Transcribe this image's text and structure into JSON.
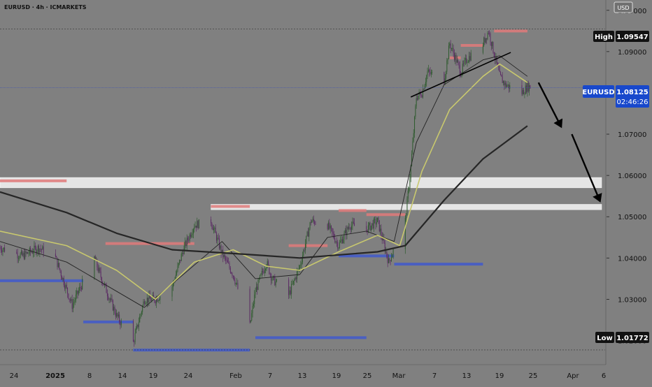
{
  "header": {
    "symbol_label": "EURUSD · 4h · ICMARKETS",
    "currency": "USD"
  },
  "price_scale": {
    "ticks": [
      "1.10000",
      "1.09000",
      "1.07000",
      "1.06000",
      "1.05000",
      "1.04000",
      "1.03000",
      "1.02000"
    ],
    "high_label": "High",
    "high_value": "1.09547",
    "low_label": "Low",
    "low_value": "1.01772",
    "last_symbol": "EURUSD",
    "last_value": "1.08125",
    "countdown": "02:46:26"
  },
  "time_axis": {
    "labels": [
      "24",
      "2025",
      "8",
      "14",
      "19",
      "24",
      "Feb",
      "7",
      "13",
      "19",
      "25",
      "Mar",
      "7",
      "13",
      "19",
      "25",
      "Apr",
      "6"
    ]
  },
  "colors": {
    "bg": "#808080",
    "bull": "#2f5b2f",
    "bear": "#5a2a63",
    "ema_fast": "#222222",
    "ema_mid": "#c8c86e",
    "ema_slow": "#262626",
    "supply": "#e07a7a",
    "demand": "#4a5fc1",
    "zone": "#eeeeee",
    "accent": "#1848cc"
  },
  "chart_data": {
    "type": "candlestick",
    "title": "EURUSD · 4h · ICMARKETS",
    "x_range": [
      "2024-12-20",
      "2025-04-08"
    ],
    "y_range": [
      1.0145,
      1.1025
    ],
    "high": 1.09547,
    "low": 1.01772,
    "last": 1.08125,
    "close_path": [
      [
        "2024-12-20",
        1.0425
      ],
      [
        "2024-12-24",
        1.0405
      ],
      [
        "2024-12-27",
        1.0425
      ],
      [
        "2024-12-30",
        1.04
      ],
      [
        "2025-01-02",
        1.0285
      ],
      [
        "2025-01-03",
        1.0315
      ],
      [
        "2025-01-06",
        1.04
      ],
      [
        "2025-01-07",
        1.036
      ],
      [
        "2025-01-10",
        1.026
      ],
      [
        "2025-01-13",
        1.0195
      ],
      [
        "2025-01-15",
        1.03
      ],
      [
        "2025-01-17",
        1.03
      ],
      [
        "2025-01-20",
        1.033
      ],
      [
        "2025-01-22",
        1.042
      ],
      [
        "2025-01-24",
        1.048
      ],
      [
        "2025-01-27",
        1.049
      ],
      [
        "2025-01-29",
        1.041
      ],
      [
        "2025-01-31",
        1.036
      ],
      [
        "2025-02-03",
        1.0235
      ],
      [
        "2025-02-04",
        1.032
      ],
      [
        "2025-02-06",
        1.039
      ],
      [
        "2025-02-07",
        1.035
      ],
      [
        "2025-02-10",
        1.031
      ],
      [
        "2025-02-12",
        1.038
      ],
      [
        "2025-02-14",
        1.049
      ],
      [
        "2025-02-17",
        1.048
      ],
      [
        "2025-02-19",
        1.043
      ],
      [
        "2025-02-21",
        1.048
      ],
      [
        "2025-02-24",
        1.047
      ],
      [
        "2025-02-26",
        1.049
      ],
      [
        "2025-02-28",
        1.039
      ],
      [
        "2025-03-03",
        1.049
      ],
      [
        "2025-03-04",
        1.062
      ],
      [
        "2025-03-05",
        1.079
      ],
      [
        "2025-03-06",
        1.08
      ],
      [
        "2025-03-07",
        1.085
      ],
      [
        "2025-03-10",
        1.083
      ],
      [
        "2025-03-11",
        1.092
      ],
      [
        "2025-03-13",
        1.085
      ],
      [
        "2025-03-14",
        1.088
      ],
      [
        "2025-03-17",
        1.092
      ],
      [
        "2025-03-18",
        1.095
      ],
      [
        "2025-03-20",
        1.084
      ],
      [
        "2025-03-21",
        1.082
      ],
      [
        "2025-03-24",
        1.08
      ],
      [
        "2025-03-25",
        1.0815
      ]
    ],
    "moving_averages": [
      {
        "path": [
          [
            "2024-12-20",
            1.044
          ],
          [
            "2025-01-01",
            1.039
          ],
          [
            "2025-01-15",
            1.028
          ],
          [
            "2025-01-22",
            1.036
          ],
          [
            "2025-01-29",
            1.044
          ],
          [
            "2025-02-04",
            1.035
          ],
          [
            "2025-02-12",
            1.036
          ],
          [
            "2025-02-17",
            1.045
          ],
          [
            "2025-02-24",
            1.0465
          ],
          [
            "2025-03-01",
            1.044
          ],
          [
            "2025-03-05",
            1.068
          ],
          [
            "2025-03-10",
            1.082
          ],
          [
            "2025-03-17",
            1.088
          ],
          [
            "2025-03-20",
            1.089
          ],
          [
            "2025-03-25",
            1.084
          ]
        ]
      },
      {
        "path": [
          [
            "2024-12-20",
            1.0465
          ],
          [
            "2025-01-01",
            1.043
          ],
          [
            "2025-01-10",
            1.037
          ],
          [
            "2025-01-17",
            1.03
          ],
          [
            "2025-01-24",
            1.039
          ],
          [
            "2025-01-31",
            1.042
          ],
          [
            "2025-02-06",
            1.038
          ],
          [
            "2025-02-12",
            1.037
          ],
          [
            "2025-02-19",
            1.0415
          ],
          [
            "2025-02-26",
            1.0455
          ],
          [
            "2025-03-02",
            1.043
          ],
          [
            "2025-03-06",
            1.061
          ],
          [
            "2025-03-11",
            1.076
          ],
          [
            "2025-03-17",
            1.084
          ],
          [
            "2025-03-20",
            1.087
          ],
          [
            "2025-03-25",
            1.0825
          ]
        ]
      },
      {
        "path": [
          [
            "2024-12-20",
            1.056
          ],
          [
            "2025-01-01",
            1.051
          ],
          [
            "2025-01-10",
            1.046
          ],
          [
            "2025-01-20",
            1.042
          ],
          [
            "2025-02-01",
            1.041
          ],
          [
            "2025-02-12",
            1.04
          ],
          [
            "2025-02-26",
            1.0415
          ],
          [
            "2025-03-03",
            1.043
          ],
          [
            "2025-03-10",
            1.054
          ],
          [
            "2025-03-17",
            1.064
          ],
          [
            "2025-03-25",
            1.072
          ]
        ]
      }
    ],
    "supply_levels": [
      [
        [
          "2024-12-20",
          "2025-01-01"
        ],
        1.0587
      ],
      [
        [
          "2025-01-08",
          "2025-01-24"
        ],
        1.0435
      ],
      [
        [
          "2025-01-27",
          "2025-02-03"
        ],
        1.0525
      ],
      [
        [
          "2025-02-10",
          "2025-02-17"
        ],
        1.043
      ],
      [
        [
          "2025-02-19",
          "2025-02-24"
        ],
        1.0515
      ],
      [
        [
          "2025-02-24",
          "2025-03-03"
        ],
        1.0505
      ],
      [
        [
          "2025-03-11",
          "2025-03-13"
        ],
        1.0885
      ],
      [
        [
          "2025-03-13",
          "2025-03-17"
        ],
        1.0915
      ],
      [
        [
          "2025-03-19",
          "2025-03-25"
        ],
        1.095
      ]
    ],
    "demand_levels": [
      [
        [
          "2024-12-20",
          "2025-01-04"
        ],
        1.0345
      ],
      [
        [
          "2025-01-04",
          "2025-01-13"
        ],
        1.0245
      ],
      [
        [
          "2025-01-13",
          "2025-02-03"
        ],
        1.0177
      ],
      [
        [
          "2025-02-04",
          "2025-02-24"
        ],
        1.0207
      ],
      [
        [
          "2025-02-19",
          "2025-03-01"
        ],
        1.0405
      ],
      [
        [
          "2025-03-01",
          "2025-03-17"
        ],
        1.0385
      ]
    ],
    "zones": [
      {
        "x": [
          "2024-12-20",
          "2025-04-08"
        ],
        "y": [
          1.057,
          1.0595
        ]
      },
      {
        "x": [
          "2025-01-27",
          "2025-04-08"
        ],
        "y": [
          1.0517,
          1.053
        ]
      }
    ],
    "trendline": [
      [
        "2025-03-04",
        1.079
      ],
      [
        "2025-03-22",
        1.0898
      ]
    ],
    "projection_arrows": [
      [
        [
          "2025-03-27",
          1.0825
        ],
        [
          "2025-03-31",
          1.072
        ]
      ],
      [
        [
          "2025-04-02",
          1.07
        ],
        [
          "2025-04-07",
          1.054
        ]
      ]
    ]
  }
}
